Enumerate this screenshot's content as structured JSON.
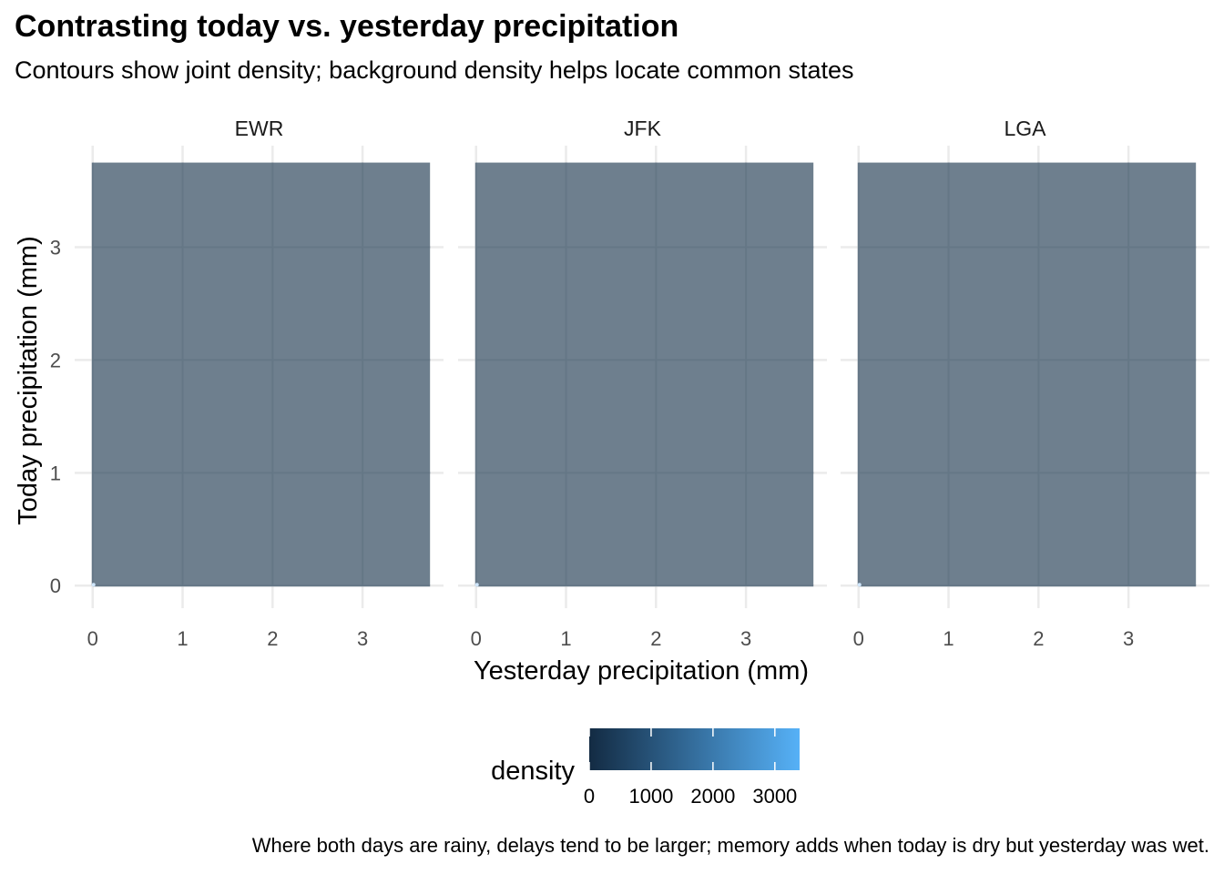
{
  "header": {
    "title": "Contrasting today vs. yesterday precipitation",
    "subtitle": "Contours show joint density; background density helps locate common states"
  },
  "caption": "Where both days are rainy, delays tend to be larger; memory adds when today is dry but yesterday was wet.",
  "chart_data": {
    "type": "heatmap",
    "xlabel": "Yesterday precipitation (mm)",
    "ylabel": "Today precipitation (mm)",
    "xlim": [
      -0.2,
      3.9
    ],
    "ylim": [
      -0.2,
      3.9
    ],
    "x_ticks": [
      0,
      1,
      2,
      3
    ],
    "y_ticks": [
      0,
      1,
      2,
      3
    ],
    "grid": true,
    "facets": [
      {
        "name": "EWR",
        "tile_extent": {
          "x": [
            0,
            3.75
          ],
          "y": [
            0,
            3.75
          ]
        },
        "mode_point": {
          "x": 0,
          "y": 0
        }
      },
      {
        "name": "JFK",
        "tile_extent": {
          "x": [
            0,
            3.75
          ],
          "y": [
            0,
            3.75
          ]
        },
        "mode_point": {
          "x": 0,
          "y": 0
        }
      },
      {
        "name": "LGA",
        "tile_extent": {
          "x": [
            0,
            3.75
          ],
          "y": [
            0,
            3.75
          ]
        },
        "mode_point": {
          "x": 0,
          "y": 0
        }
      }
    ],
    "legend": {
      "title": "density",
      "position": "bottom",
      "range": [
        0,
        3400
      ],
      "breaks": [
        0,
        1000,
        2000,
        3000
      ],
      "colors": {
        "low": "#132b43",
        "high": "#56b1f7"
      }
    },
    "colors": {
      "background_tile": "#6e7f8e",
      "grid": "#ebebeb",
      "contour": "#cfe6fb"
    }
  }
}
